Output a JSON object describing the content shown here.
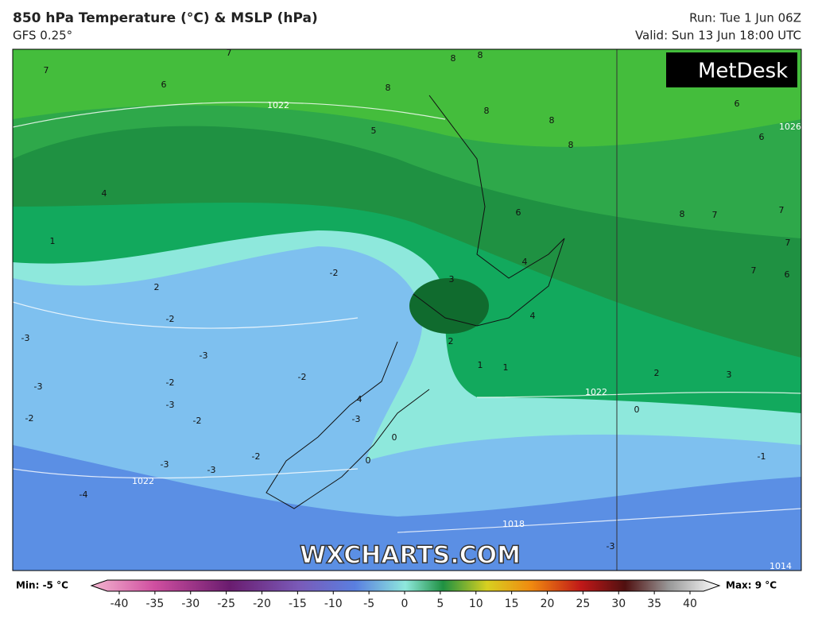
{
  "header": {
    "title": "850 hPa Temperature (°C) & MSLP (hPa)",
    "model": "GFS 0.25°",
    "run": "Run: Tue 1 Jun 06Z",
    "valid": "Valid: Sun 13 Jun 18:00 UTC"
  },
  "logo": "MetDesk",
  "watermark": "WXCHARTS.COM",
  "map": {
    "temperature_labels": [
      "7",
      "7",
      "6",
      "8",
      "8",
      "8",
      "8",
      "8",
      "8",
      "6",
      "6",
      "5",
      "4",
      "1",
      "2",
      "-2",
      "-3",
      "-3",
      "-3",
      "-2",
      "-2",
      "-3",
      "-2",
      "-2",
      "-2",
      "3",
      "2",
      "1",
      "1",
      "4",
      "6",
      "4",
      "8",
      "7",
      "7",
      "7",
      "7",
      "6",
      "2",
      "3",
      "0",
      "-1",
      "-3",
      "-3",
      "-4",
      "-2",
      "-3",
      "4",
      "0",
      "0",
      "-3"
    ],
    "isobar_labels": [
      "1022",
      "1026",
      "1022",
      "1022",
      "1018",
      "1014"
    ]
  },
  "legend": {
    "min_label": "Min: -5 °C",
    "max_label": "Max: 9 °C",
    "ticks": [
      -40,
      -35,
      -30,
      -25,
      -20,
      -15,
      -10,
      -5,
      0,
      5,
      10,
      15,
      20,
      25,
      30,
      35,
      40
    ]
  }
}
